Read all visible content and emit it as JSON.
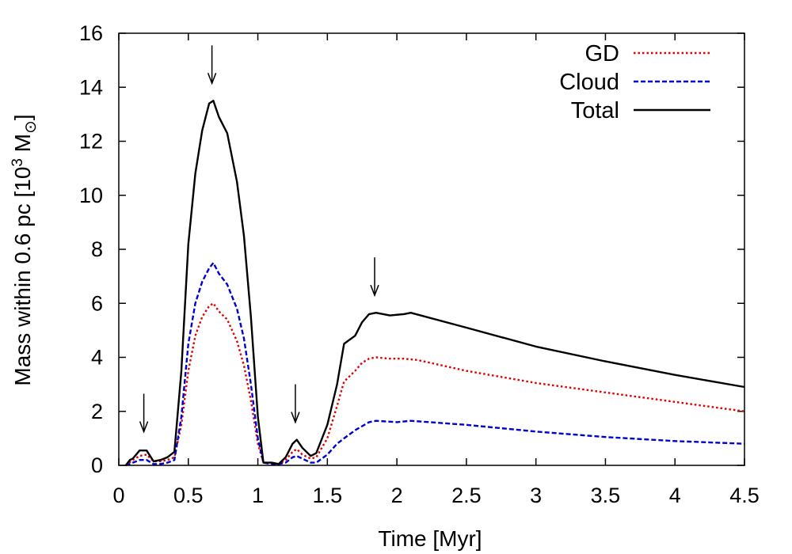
{
  "chart_data": {
    "type": "line",
    "title": "",
    "xlabel": "Time [Myr]",
    "ylabel_prefix": "Mass within 0.6 pc [10",
    "ylabel_sup": "3",
    "ylabel_unit": " M",
    "ylabel_sub": "⊙",
    "ylabel_suffix": "]",
    "xlim": [
      0,
      4.5
    ],
    "ylim": [
      0,
      16
    ],
    "xticks": [
      0,
      0.5,
      1,
      1.5,
      2,
      2.5,
      3,
      3.5,
      4,
      4.5
    ],
    "xtick_labels": [
      "0",
      "0.5",
      "1",
      "1.5",
      "2",
      "2.5",
      "3",
      "3.5",
      "4",
      "4.5"
    ],
    "yticks": [
      0,
      2,
      4,
      6,
      8,
      10,
      12,
      14,
      16
    ],
    "ytick_labels": [
      "0",
      "2",
      "4",
      "6",
      "8",
      "10",
      "12",
      "14",
      "16"
    ],
    "legend_position": "top-right",
    "series": [
      {
        "name": "GD",
        "color": "#e00000",
        "dash": "dotted",
        "points": [
          [
            0.05,
            0.0
          ],
          [
            0.1,
            0.2
          ],
          [
            0.15,
            0.35
          ],
          [
            0.2,
            0.4
          ],
          [
            0.25,
            0.15
          ],
          [
            0.3,
            0.15
          ],
          [
            0.35,
            0.2
          ],
          [
            0.4,
            0.3
          ],
          [
            0.45,
            1.5
          ],
          [
            0.5,
            3.5
          ],
          [
            0.55,
            4.8
          ],
          [
            0.6,
            5.5
          ],
          [
            0.65,
            5.9
          ],
          [
            0.68,
            6.0
          ],
          [
            0.72,
            5.7
          ],
          [
            0.78,
            5.4
          ],
          [
            0.85,
            4.6
          ],
          [
            0.9,
            3.7
          ],
          [
            0.95,
            2.4
          ],
          [
            1.0,
            0.8
          ],
          [
            1.04,
            0.1
          ],
          [
            1.1,
            0.1
          ],
          [
            1.15,
            0.05
          ],
          [
            1.2,
            0.2
          ],
          [
            1.25,
            0.5
          ],
          [
            1.28,
            0.6
          ],
          [
            1.32,
            0.4
          ],
          [
            1.38,
            0.25
          ],
          [
            1.42,
            0.3
          ],
          [
            1.5,
            1.0
          ],
          [
            1.57,
            2.2
          ],
          [
            1.62,
            3.1
          ],
          [
            1.7,
            3.5
          ],
          [
            1.75,
            3.8
          ],
          [
            1.8,
            3.95
          ],
          [
            1.85,
            4.0
          ],
          [
            1.95,
            3.95
          ],
          [
            2.05,
            3.95
          ],
          [
            2.15,
            3.9
          ],
          [
            2.5,
            3.5
          ],
          [
            3.0,
            3.05
          ],
          [
            3.5,
            2.7
          ],
          [
            4.0,
            2.35
          ],
          [
            4.5,
            2.0
          ]
        ]
      },
      {
        "name": "Cloud",
        "color": "#0000d0",
        "dash": "dashed",
        "points": [
          [
            0.05,
            0.0
          ],
          [
            0.1,
            0.1
          ],
          [
            0.15,
            0.2
          ],
          [
            0.2,
            0.2
          ],
          [
            0.25,
            0.05
          ],
          [
            0.3,
            0.05
          ],
          [
            0.35,
            0.1
          ],
          [
            0.4,
            0.2
          ],
          [
            0.45,
            1.8
          ],
          [
            0.5,
            4.5
          ],
          [
            0.55,
            6.0
          ],
          [
            0.6,
            6.8
          ],
          [
            0.65,
            7.3
          ],
          [
            0.68,
            7.5
          ],
          [
            0.72,
            7.1
          ],
          [
            0.78,
            6.7
          ],
          [
            0.85,
            5.8
          ],
          [
            0.9,
            4.7
          ],
          [
            0.95,
            3.0
          ],
          [
            1.0,
            1.0
          ],
          [
            1.04,
            0.1
          ],
          [
            1.1,
            0.05
          ],
          [
            1.15,
            0.05
          ],
          [
            1.2,
            0.1
          ],
          [
            1.25,
            0.3
          ],
          [
            1.28,
            0.35
          ],
          [
            1.32,
            0.25
          ],
          [
            1.38,
            0.1
          ],
          [
            1.42,
            0.1
          ],
          [
            1.5,
            0.4
          ],
          [
            1.57,
            0.8
          ],
          [
            1.62,
            1.0
          ],
          [
            1.7,
            1.3
          ],
          [
            1.8,
            1.6
          ],
          [
            1.85,
            1.65
          ],
          [
            2.0,
            1.6
          ],
          [
            2.1,
            1.65
          ],
          [
            2.5,
            1.5
          ],
          [
            3.0,
            1.25
          ],
          [
            3.5,
            1.05
          ],
          [
            4.0,
            0.9
          ],
          [
            4.5,
            0.8
          ]
        ]
      },
      {
        "name": "Total",
        "color": "#000000",
        "dash": "solid",
        "points": [
          [
            0.05,
            0.0
          ],
          [
            0.08,
            0.2
          ],
          [
            0.1,
            0.25
          ],
          [
            0.15,
            0.55
          ],
          [
            0.2,
            0.55
          ],
          [
            0.25,
            0.15
          ],
          [
            0.3,
            0.2
          ],
          [
            0.35,
            0.3
          ],
          [
            0.4,
            0.5
          ],
          [
            0.45,
            3.5
          ],
          [
            0.5,
            8.2
          ],
          [
            0.55,
            10.8
          ],
          [
            0.6,
            12.4
          ],
          [
            0.65,
            13.4
          ],
          [
            0.68,
            13.5
          ],
          [
            0.72,
            12.9
          ],
          [
            0.78,
            12.3
          ],
          [
            0.85,
            10.5
          ],
          [
            0.9,
            8.5
          ],
          [
            0.95,
            5.5
          ],
          [
            1.0,
            1.8
          ],
          [
            1.04,
            0.1
          ],
          [
            1.1,
            0.1
          ],
          [
            1.15,
            0.05
          ],
          [
            1.2,
            0.3
          ],
          [
            1.25,
            0.8
          ],
          [
            1.28,
            0.95
          ],
          [
            1.32,
            0.65
          ],
          [
            1.38,
            0.35
          ],
          [
            1.42,
            0.45
          ],
          [
            1.5,
            1.5
          ],
          [
            1.57,
            3.0
          ],
          [
            1.62,
            4.5
          ],
          [
            1.7,
            4.8
          ],
          [
            1.75,
            5.3
          ],
          [
            1.8,
            5.6
          ],
          [
            1.85,
            5.65
          ],
          [
            1.95,
            5.55
          ],
          [
            2.05,
            5.6
          ],
          [
            2.1,
            5.65
          ],
          [
            2.5,
            5.1
          ],
          [
            3.0,
            4.4
          ],
          [
            3.5,
            3.85
          ],
          [
            4.0,
            3.35
          ],
          [
            4.5,
            2.9
          ]
        ]
      }
    ],
    "arrows": [
      {
        "x": 0.18,
        "y": 0.6
      },
      {
        "x": 0.67,
        "y": 13.5
      },
      {
        "x": 1.27,
        "y": 0.95
      },
      {
        "x": 1.84,
        "y": 5.65
      }
    ]
  }
}
